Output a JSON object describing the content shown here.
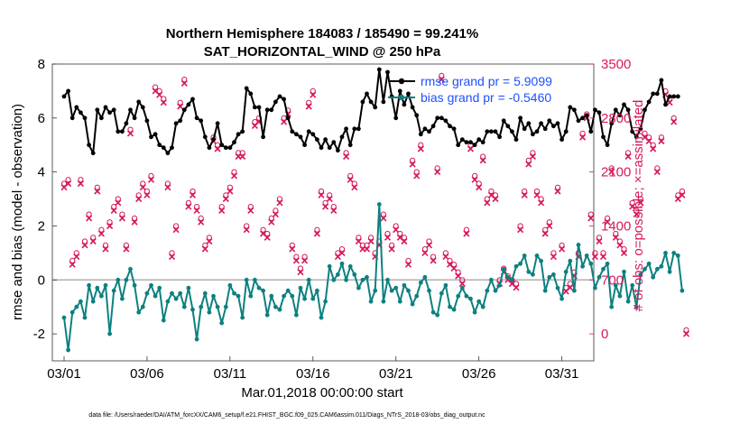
{
  "colors": {
    "rmse": "#000000",
    "bias": "#0e8080",
    "obs": "#d6195e",
    "zero_line": "#b0b0b0",
    "legend_text": "#1f4fff",
    "axis": "#333333"
  },
  "chart_data": {
    "type": "line",
    "title": "Northern Hemisphere 184083 / 185490 = 99.241%",
    "subtitle": "SAT_HORIZONTAL_WIND @ 250 hPa",
    "xlabel": "Mar.01,2018 00:00:00 start",
    "ylabel_left": "rmse and bias (model - observation)",
    "ylabel_right": "# of obs: o=possible; ×=assimilated",
    "xlim": [
      0,
      31.6
    ],
    "ylim_left": [
      -3,
      8
    ],
    "ylim_right": [
      -350,
      3500
    ],
    "x_ticks": [
      0,
      5,
      10,
      15,
      20,
      25,
      30
    ],
    "x_tick_labels": [
      "03/01",
      "03/06",
      "03/11",
      "03/16",
      "03/21",
      "03/26",
      "03/31"
    ],
    "y_left_ticks": [
      "-2",
      "0",
      "2",
      "4",
      "6",
      "8"
    ],
    "y_right_ticks": [
      "0",
      "700",
      "1400",
      "2100",
      "2800",
      "3500"
    ],
    "legend": {
      "location": "top-right",
      "entries": [
        "rmse grand pr = 5.9099",
        "bias grand pr = -0.5460"
      ]
    },
    "footnote": "data file: /Users/raeder/DAI/ATM_forcXX/CAM6_setup/f.e21.FHIST_BGC.f09_025.CAM6assim.011/Diags_NTrS_2018-03/obs_diag_output.nc",
    "x_step_days": 0.25,
    "series": [
      {
        "name": "rmse",
        "axis": "left",
        "values": [
          6.8,
          7.0,
          6.0,
          6.4,
          6.2,
          6.0,
          5.0,
          4.7,
          6.3,
          6.0,
          6.4,
          6.2,
          6.3,
          5.5,
          5.5,
          5.8,
          6.3,
          6.0,
          6.6,
          6.4,
          5.9,
          5.3,
          5.4,
          5.0,
          4.9,
          4.7,
          4.9,
          5.8,
          5.9,
          6.3,
          6.5,
          6.7,
          6.0,
          5.9,
          5.3,
          4.9,
          5.2,
          5.8,
          5.0,
          4.9,
          4.9,
          5.1,
          5.4,
          5.5,
          7.1,
          6.9,
          6.4,
          6.4,
          5.3,
          6.3,
          6.3,
          6.6,
          6.8,
          6.7,
          6.0,
          5.5,
          5.4,
          5.3,
          5.0,
          5.5,
          5.4,
          5.2,
          4.9,
          5.2,
          4.9,
          5.1,
          4.8,
          5.3,
          5.6,
          5.0,
          5.6,
          5.6,
          6.6,
          6.9,
          6.6,
          6.4,
          7.8,
          6.6,
          7.7,
          6.8,
          6.0,
          7.0,
          6.5,
          6.9,
          6.4,
          6.1,
          5.4,
          5.6,
          5.5,
          5.7,
          6.0,
          6.0,
          5.9,
          5.7,
          5.6,
          5.0,
          5.2,
          5.1,
          5.1,
          5.0,
          5.2,
          5.1,
          5.5,
          5.5,
          5.5,
          5.3,
          5.9,
          5.7,
          5.5,
          5.2,
          6.0,
          5.6,
          5.8,
          5.4,
          5.5,
          5.8,
          5.6,
          5.9,
          5.7,
          5.8,
          5.2,
          5.5,
          6.4,
          6.3,
          5.9,
          6.0,
          6.1,
          5.5,
          6.3,
          6.2,
          5.3,
          5.0,
          5.8,
          6.3,
          6.1,
          6.5,
          6.3,
          5.5,
          5.3,
          5.6,
          6.3,
          6.6,
          6.9,
          6.9,
          7.4,
          6.5,
          6.8,
          6.8,
          6.8
        ]
      },
      {
        "name": "bias",
        "axis": "left",
        "values": [
          -1.4,
          -2.6,
          -1.2,
          -1.0,
          -0.8,
          -1.4,
          -0.2,
          -0.8,
          -0.3,
          -0.6,
          -0.2,
          -2.0,
          -0.4,
          0.0,
          -0.7,
          0.0,
          0.4,
          -0.2,
          -1.2,
          -1.0,
          -0.5,
          -0.2,
          -0.6,
          -0.3,
          -1.5,
          -0.8,
          -0.5,
          -0.7,
          -0.5,
          -1.0,
          -0.3,
          -1.1,
          -2.2,
          -1.0,
          -0.5,
          -1.2,
          -0.6,
          -1.0,
          -1.6,
          -1.0,
          -0.2,
          -0.5,
          -0.6,
          -1.4,
          0.0,
          -0.6,
          0.0,
          -0.3,
          -0.4,
          -1.3,
          -0.6,
          -1.0,
          -1.1,
          -0.6,
          -0.4,
          -0.6,
          -1.3,
          -0.3,
          -0.7,
          0.0,
          -0.7,
          -0.4,
          -1.4,
          -0.8,
          0.5,
          0.0,
          0.2,
          0.6,
          0.0,
          0.5,
          0.2,
          -0.3,
          0.0,
          0.1,
          -0.8,
          -0.4,
          2.8,
          -0.8,
          0.0,
          -0.4,
          -0.3,
          -0.8,
          -0.2,
          -0.4,
          -0.9,
          -0.6,
          -0.1,
          0.1,
          -0.4,
          -1.2,
          -1.3,
          -0.5,
          -0.2,
          -1.0,
          -1.1,
          -0.6,
          -0.3,
          -0.6,
          -0.7,
          -1.2,
          -0.8,
          -1.0,
          -0.4,
          0.0,
          -0.4,
          -0.2,
          0.4,
          0.1,
          0.0,
          0.5,
          0.6,
          0.9,
          0.3,
          0.2,
          0.9,
          0.7,
          -0.4,
          0.1,
          0.2,
          -0.3,
          -0.7,
          0.3,
          0.7,
          -0.4,
          1.3,
          0.5,
          0.9,
          0.6,
          -0.3,
          0.1,
          0.4,
          0.6,
          -1.0,
          -0.2,
          -0.6,
          0.3,
          -0.8,
          -0.2,
          -1.0,
          0.2,
          0.4,
          0.6,
          0.1,
          0.4,
          0.5,
          1.0,
          0.3,
          1.0,
          0.9,
          -0.4
        ]
      },
      {
        "name": "obs_assimilated",
        "axis": "right",
        "values": [
          1900,
          1950,
          900,
          1000,
          1950,
          1150,
          1500,
          1200,
          1850,
          1300,
          1100,
          1400,
          1600,
          1700,
          1500,
          1100,
          2600,
          1450,
          1750,
          1900,
          1800,
          2000,
          3150,
          3100,
          3000,
          1900,
          1000,
          1350,
          2950,
          3250,
          1650,
          1800,
          1600,
          1450,
          1100,
          1200,
          2500,
          2400,
          1600,
          1750,
          1850,
          2050,
          2300,
          2300,
          1350,
          1600,
          2700,
          2750,
          1300,
          1250,
          1450,
          1550,
          1700,
          2750,
          2850,
          1100,
          950,
          800,
          950,
          2950,
          3100,
          1300,
          1800,
          1650,
          1750,
          1600,
          1000,
          1050,
          2300,
          2000,
          1900,
          1200,
          1100,
          1100,
          1200,
          1000,
          1150,
          1500,
          1250,
          1100,
          1350,
          1250,
          1200,
          900,
          2200,
          2050,
          2400,
          1050,
          1150,
          950,
          2100,
          3300,
          1000,
          900,
          850,
          750,
          650,
          1300,
          2400,
          2000,
          1900,
          2250,
          1700,
          1800,
          1750,
          650,
          800,
          700,
          650,
          600,
          1350,
          1800,
          2200,
          2300,
          1800,
          1700,
          1300,
          1400,
          1000,
          1850,
          1100,
          550,
          600,
          750,
          1000,
          2550,
          2800,
          1500,
          1000,
          1200,
          1000,
          1450,
          2100,
          1250,
          1150,
          1050,
          2300,
          1650,
          1550,
          1700,
          2550,
          2500,
          2400,
          2100,
          2500,
          3100,
          3000,
          2750,
          1750,
          1800,
          0
        ]
      },
      {
        "name": "obs_possible",
        "axis": "right",
        "values": [
          1950,
          2000,
          950,
          1050,
          2000,
          1200,
          1550,
          1250,
          1900,
          1350,
          1150,
          1450,
          1650,
          1750,
          1550,
          1150,
          2650,
          1500,
          1800,
          1950,
          1850,
          2050,
          3200,
          3150,
          3050,
          1950,
          1050,
          1400,
          3000,
          3300,
          1700,
          1850,
          1650,
          1500,
          1150,
          1250,
          2550,
          2450,
          1650,
          1800,
          1900,
          2100,
          2350,
          2350,
          1400,
          1650,
          2750,
          2800,
          1350,
          1300,
          1500,
          1600,
          1750,
          2800,
          2900,
          1150,
          1000,
          850,
          1000,
          3000,
          3150,
          1350,
          1850,
          1700,
          1800,
          1650,
          1050,
          1100,
          2350,
          2050,
          1950,
          1250,
          1150,
          1150,
          1250,
          1050,
          1200,
          1550,
          1300,
          1150,
          1400,
          1300,
          1250,
          950,
          2250,
          2100,
          2450,
          1100,
          1200,
          1000,
          2150,
          3350,
          1050,
          950,
          900,
          800,
          700,
          1350,
          2450,
          2050,
          1950,
          2300,
          1750,
          1850,
          1800,
          700,
          850,
          750,
          700,
          650,
          1400,
          1850,
          2250,
          2350,
          1850,
          1750,
          1350,
          1450,
          1050,
          1900,
          1150,
          600,
          650,
          800,
          1050,
          2600,
          2850,
          1550,
          1050,
          1250,
          1050,
          1500,
          2150,
          1300,
          1200,
          1100,
          2350,
          1700,
          1600,
          1750,
          2600,
          2550,
          2450,
          2150,
          2550,
          3150,
          3050,
          2800,
          1800,
          1850,
          50
        ]
      }
    ]
  }
}
